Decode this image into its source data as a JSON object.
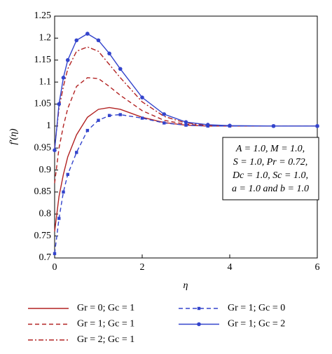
{
  "chart_data": {
    "type": "line",
    "x_label": "η",
    "y_label": "f′(η)",
    "annotation": [
      "A = 1.0, M = 1.0,",
      "S = 1.0, Pr = 0.72,",
      "Dc = 1.0, Sc = 1.0,",
      "a = 1.0 and b = 1.0"
    ],
    "x": [
      0,
      0.1,
      0.2,
      0.3,
      0.5,
      0.75,
      1,
      1.25,
      1.5,
      2,
      2.5,
      3,
      3.5,
      4,
      5,
      6
    ],
    "series": [
      {
        "name": "Gr = 0; Gc = 1",
        "color": "#b22222",
        "style": "solid",
        "values": [
          0.76,
          0.84,
          0.89,
          0.93,
          0.98,
          1.02,
          1.038,
          1.042,
          1.038,
          1.02,
          1.008,
          1.002,
          1.0,
          1.0,
          1.0,
          1.0
        ]
      },
      {
        "name": "Gr = 1; Gc = 1",
        "color": "#b22222",
        "style": "dashed",
        "values": [
          0.87,
          0.95,
          1.0,
          1.04,
          1.09,
          1.11,
          1.108,
          1.09,
          1.07,
          1.035,
          1.013,
          1.004,
          1.001,
          1.0,
          1.0,
          1.0
        ]
      },
      {
        "name": "Gr = 2; Gc = 1",
        "color": "#b22222",
        "style": "dashdot",
        "values": [
          0.95,
          1.04,
          1.09,
          1.13,
          1.17,
          1.18,
          1.17,
          1.14,
          1.11,
          1.055,
          1.022,
          1.007,
          1.002,
          1.0,
          1.0,
          1.0
        ]
      },
      {
        "name": "Gr = 1; Gc = 0",
        "color": "#3344cc",
        "style": "dashed",
        "marker": "square",
        "values": [
          0.71,
          0.79,
          0.85,
          0.89,
          0.94,
          0.99,
          1.013,
          1.024,
          1.026,
          1.018,
          1.007,
          1.002,
          1.0,
          1.0,
          1.0,
          1.0
        ]
      },
      {
        "name": "Gr = 1; Gc = 2",
        "color": "#3344cc",
        "style": "solid",
        "marker": "circle",
        "values": [
          0.945,
          1.05,
          1.11,
          1.15,
          1.195,
          1.21,
          1.195,
          1.165,
          1.13,
          1.065,
          1.027,
          1.009,
          1.003,
          1.001,
          1.0,
          1.0
        ]
      }
    ],
    "xlim": [
      0,
      6
    ],
    "xticks": [
      0,
      2,
      4,
      6
    ],
    "ylim": [
      0.7,
      1.25
    ],
    "yticks": [
      0.7,
      0.75,
      0.8,
      0.85,
      0.9,
      0.95,
      1,
      1.05,
      1.1,
      1.15,
      1.2,
      1.25
    ]
  }
}
